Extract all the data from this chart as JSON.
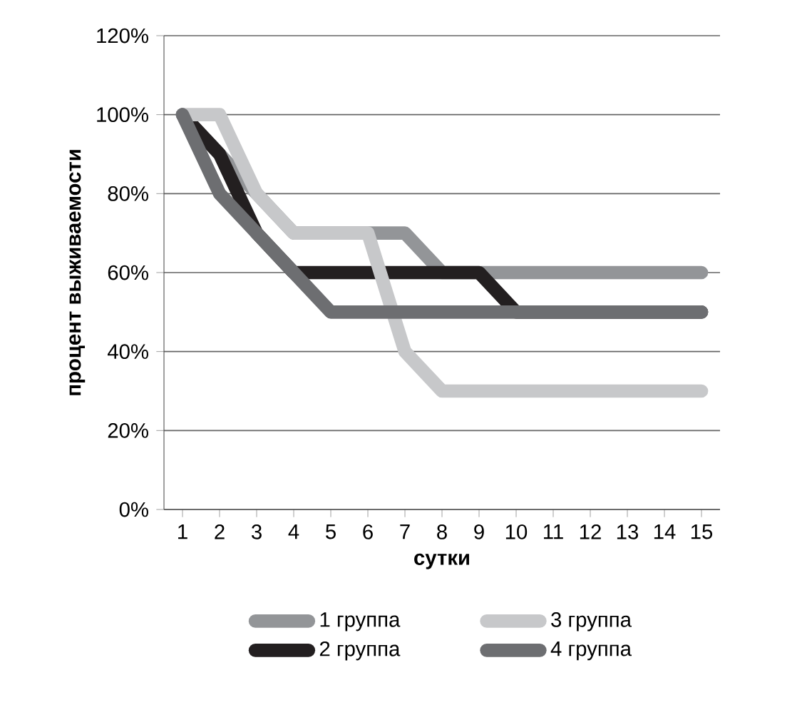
{
  "chart_data": {
    "type": "line",
    "xlabel": "сутки",
    "ylabel": "процент выживаемости",
    "categories": [
      "1",
      "2",
      "3",
      "4",
      "5",
      "6",
      "7",
      "8",
      "9",
      "10",
      "11",
      "12",
      "13",
      "14",
      "15"
    ],
    "series": [
      {
        "name": "1 группа",
        "color": "#939598",
        "values": [
          100,
          90,
          80,
          70,
          70,
          70,
          70,
          60,
          60,
          60,
          60,
          60,
          60,
          60,
          60
        ]
      },
      {
        "name": "2 группа",
        "color": "#231f20",
        "values": [
          100,
          90,
          70,
          60,
          60,
          60,
          60,
          60,
          60,
          50,
          50,
          50,
          50,
          50,
          50
        ]
      },
      {
        "name": "3 группа",
        "color": "#c7c8ca",
        "values": [
          100,
          100,
          80,
          70,
          70,
          70,
          40,
          30,
          30,
          30,
          30,
          30,
          30,
          30,
          30
        ]
      },
      {
        "name": "4 группа",
        "color": "#6d6e71",
        "values": [
          100,
          80,
          70,
          60,
          50,
          50,
          50,
          50,
          50,
          50,
          50,
          50,
          50,
          50,
          50
        ]
      }
    ],
    "ylim": [
      0,
      120
    ],
    "yticks": [
      {
        "value": 0,
        "label": "0%"
      },
      {
        "value": 20,
        "label": "20%"
      },
      {
        "value": 40,
        "label": "40%"
      },
      {
        "value": 60,
        "label": "60%"
      },
      {
        "value": 80,
        "label": "80%"
      },
      {
        "value": 100,
        "label": "100%"
      },
      {
        "value": 120,
        "label": "120%"
      }
    ],
    "grid": "y",
    "legend": "bottom",
    "marker": "none",
    "line_style": "solid"
  }
}
